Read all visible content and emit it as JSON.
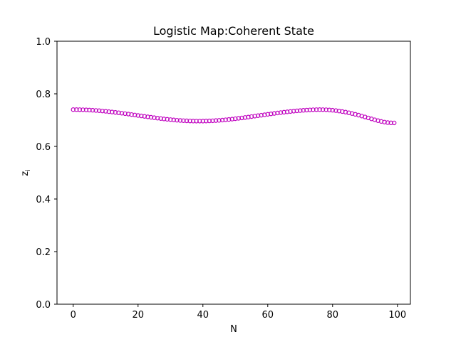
{
  "chart_data": {
    "type": "scatter",
    "title": "Logistic Map:Coherent State",
    "xlabel": "N",
    "ylabel": "z",
    "ylabel_subscript": "i",
    "xlim": [
      -5,
      104
    ],
    "ylim": [
      0.0,
      1.0
    ],
    "xticks": [
      {
        "value": 0,
        "label": "0"
      },
      {
        "value": 20,
        "label": "20"
      },
      {
        "value": 40,
        "label": "40"
      },
      {
        "value": 60,
        "label": "60"
      },
      {
        "value": 80,
        "label": "80"
      },
      {
        "value": 100,
        "label": "100"
      }
    ],
    "yticks": [
      {
        "value": 0.0,
        "label": "0.0"
      },
      {
        "value": 0.2,
        "label": "0.2"
      },
      {
        "value": 0.4,
        "label": "0.4"
      },
      {
        "value": 0.6,
        "label": "0.6"
      },
      {
        "value": 0.8,
        "label": "0.8"
      },
      {
        "value": 1.0,
        "label": "1.0"
      }
    ],
    "grid": false,
    "legend": false,
    "marker": "open-circle",
    "color": "#bf00bf",
    "series": [
      {
        "x": [
          0,
          1,
          2,
          3,
          4,
          5,
          6,
          7,
          8,
          9,
          10,
          11,
          12,
          13,
          14,
          15,
          16,
          17,
          18,
          19,
          20,
          21,
          22,
          23,
          24,
          25,
          26,
          27,
          28,
          29,
          30,
          31,
          32,
          33,
          34,
          35,
          36,
          37,
          38,
          39,
          40,
          41,
          42,
          43,
          44,
          45,
          46,
          47,
          48,
          49,
          50,
          51,
          52,
          53,
          54,
          55,
          56,
          57,
          58,
          59,
          60,
          61,
          62,
          63,
          64,
          65,
          66,
          67,
          68,
          69,
          70,
          71,
          72,
          73,
          74,
          75,
          76,
          77,
          78,
          79,
          80,
          81,
          82,
          83,
          84,
          85,
          86,
          87,
          88,
          89,
          90,
          91,
          92,
          93,
          94,
          95,
          96,
          97,
          98,
          99
        ],
        "y": [
          0.7399,
          0.7399,
          0.7397,
          0.7394,
          0.7389,
          0.7383,
          0.7376,
          0.7367,
          0.7358,
          0.7347,
          0.7335,
          0.7322,
          0.7308,
          0.7294,
          0.7279,
          0.7263,
          0.7246,
          0.723,
          0.7212,
          0.7195,
          0.7177,
          0.716,
          0.7142,
          0.7125,
          0.7108,
          0.7091,
          0.7075,
          0.706,
          0.7045,
          0.7031,
          0.7019,
          0.7007,
          0.6996,
          0.6987,
          0.6979,
          0.6973,
          0.6968,
          0.6964,
          0.6962,
          0.6962,
          0.6963,
          0.6966,
          0.697,
          0.6976,
          0.6983,
          0.6991,
          0.7001,
          0.7013,
          0.7025,
          0.7038,
          0.7053,
          0.7068,
          0.7083,
          0.71,
          0.7116,
          0.7134,
          0.7151,
          0.7169,
          0.7186,
          0.7204,
          0.7221,
          0.7238,
          0.7254,
          0.7271,
          0.7286,
          0.7301,
          0.7315,
          0.7328,
          0.7341,
          0.7353,
          0.7363,
          0.7373,
          0.7381,
          0.7388,
          0.7394,
          0.7398,
          0.7399,
          0.7398,
          0.7394,
          0.7386,
          0.7376,
          0.7362,
          0.7346,
          0.7326,
          0.7304,
          0.7279,
          0.7251,
          0.7221,
          0.7189,
          0.7155,
          0.712,
          0.7084,
          0.7048,
          0.7013,
          0.698,
          0.695,
          0.6925,
          0.6907,
          0.6896,
          0.6894
        ]
      }
    ]
  }
}
